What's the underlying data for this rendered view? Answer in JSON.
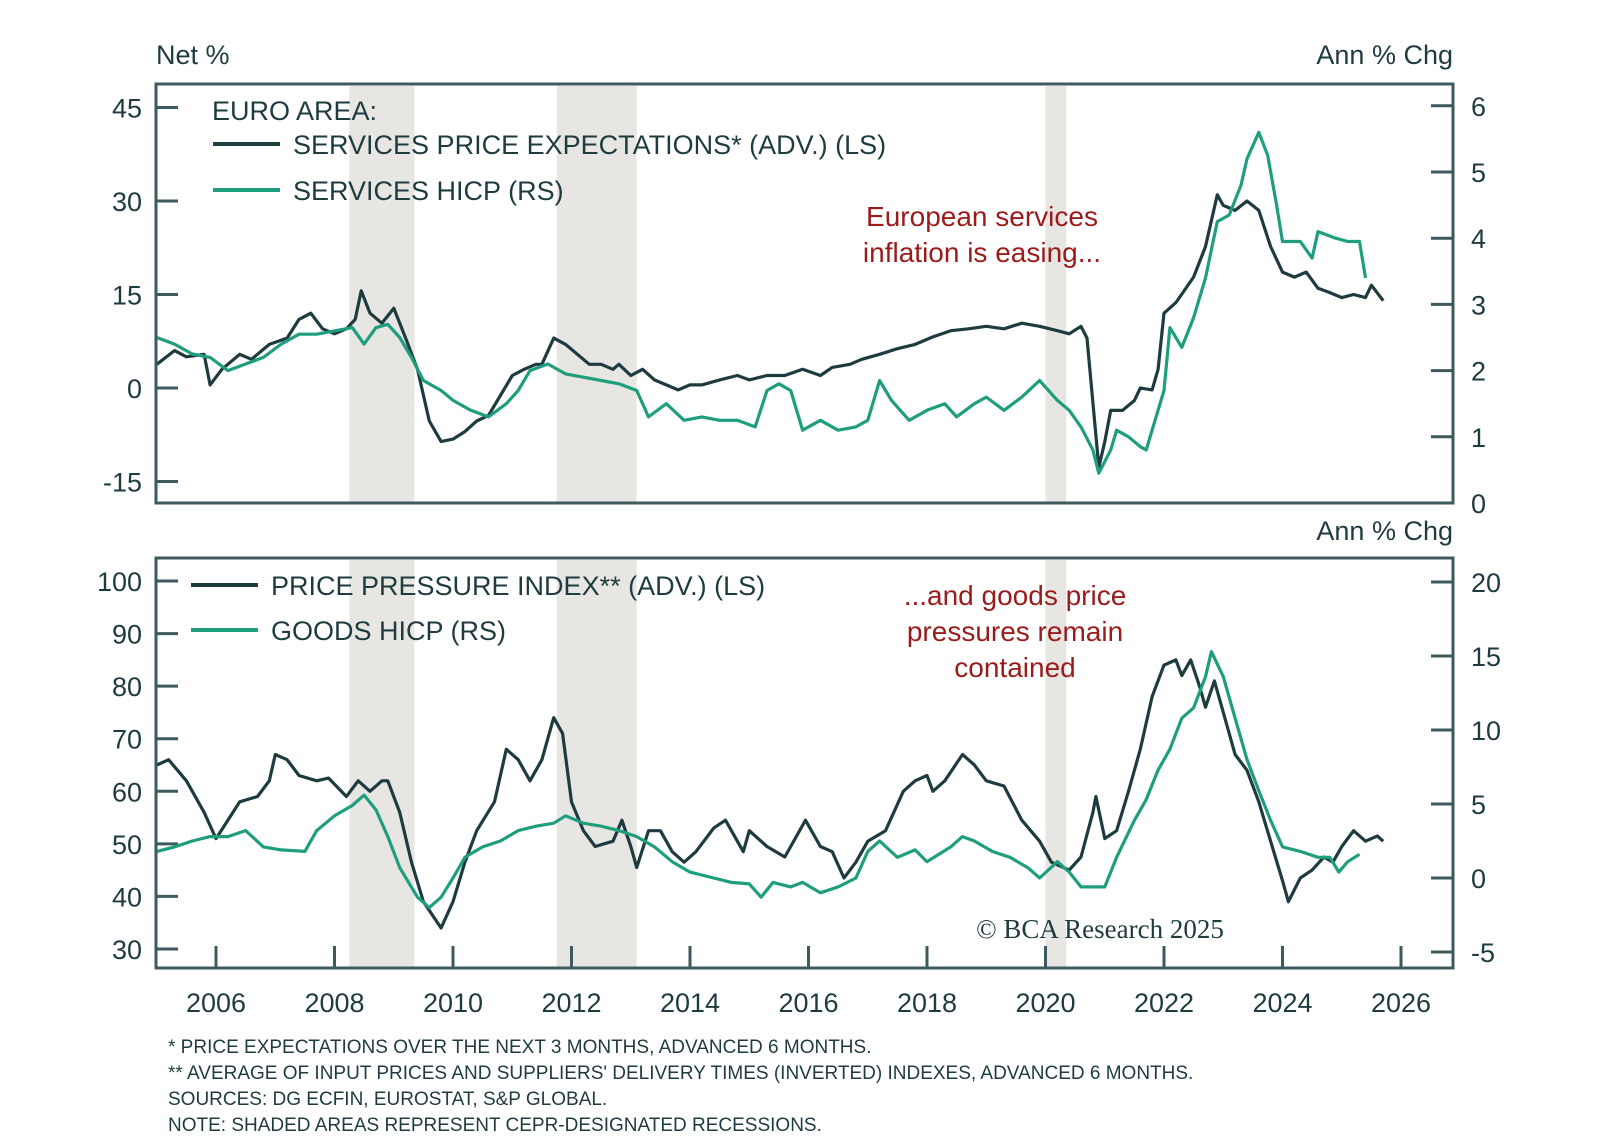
{
  "colors": {
    "dark": "#1e3b3f",
    "green": "#1f9e7e",
    "annotation": "#9b1b1b",
    "recession": "#e8e6e3",
    "axis": "#3d5a5e"
  },
  "chart_data": [
    {
      "type": "line",
      "title": "EURO AREA:",
      "ylabel_left": "Net %",
      "ylabel_right": "Ann % Chg",
      "xlim": [
        2005,
        2026.5
      ],
      "ylim_left": [
        -17,
        48
      ],
      "ylim_right": [
        0,
        6.3
      ],
      "yticks_left": [
        "45",
        "30",
        "15",
        "0",
        "-15"
      ],
      "yticks_left_values": [
        45,
        30,
        15,
        0,
        -15
      ],
      "yticks_right": [
        "6",
        "5",
        "4",
        "3",
        "2",
        "1",
        "0"
      ],
      "yticks_right_values": [
        6,
        5,
        4,
        3,
        2,
        1,
        0
      ],
      "annotation": [
        "European services",
        "inflation is easing..."
      ],
      "series": [
        {
          "name": "SERVICES PRICE EXPECTATIONS* (ADV.) (LS)",
          "axis": "left",
          "color": "dark",
          "x": [
            2005.0,
            2005.3,
            2005.5,
            2005.8,
            2005.9,
            2006.1,
            2006.4,
            2006.6,
            2006.9,
            2007.2,
            2007.4,
            2007.6,
            2007.8,
            2008.0,
            2008.2,
            2008.35,
            2008.45,
            2008.6,
            2008.8,
            2009.0,
            2009.2,
            2009.4,
            2009.6,
            2009.8,
            2010.0,
            2010.2,
            2010.4,
            2010.6,
            2010.8,
            2011.0,
            2011.2,
            2011.4,
            2011.5,
            2011.7,
            2011.9,
            2012.1,
            2012.3,
            2012.5,
            2012.7,
            2012.8,
            2013.0,
            2013.2,
            2013.4,
            2013.6,
            2013.8,
            2014.0,
            2014.2,
            2014.5,
            2014.8,
            2015.0,
            2015.3,
            2015.6,
            2015.9,
            2016.2,
            2016.4,
            2016.7,
            2016.9,
            2017.2,
            2017.5,
            2017.8,
            2018.1,
            2018.4,
            2018.7,
            2019.0,
            2019.3,
            2019.6,
            2019.9,
            2020.2,
            2020.4,
            2020.6,
            2020.7,
            2020.9,
            2021.0,
            2021.1,
            2021.3,
            2021.5,
            2021.6,
            2021.8,
            2021.9,
            2022.0,
            2022.2,
            2022.5,
            2022.7,
            2022.9,
            2023.0,
            2023.2,
            2023.4,
            2023.6,
            2023.8,
            2024.0,
            2024.2,
            2024.4,
            2024.6,
            2024.8,
            2025.0,
            2025.2,
            2025.4,
            2025.5,
            2025.7
          ],
          "y": [
            3.8,
            6,
            5,
            5.4,
            0.5,
            3,
            5.4,
            4.6,
            7,
            8,
            11,
            12,
            9.5,
            8.7,
            9.5,
            11,
            15.6,
            12,
            10.4,
            12.8,
            8,
            3,
            -5.3,
            -8.6,
            -8.2,
            -7,
            -5.3,
            -4.4,
            -1.2,
            2,
            3,
            3.8,
            3.8,
            8,
            7,
            5.4,
            3.8,
            3.8,
            3,
            3.8,
            2,
            3,
            1.3,
            0.5,
            -0.3,
            0.5,
            0.5,
            1.3,
            2,
            1.3,
            2,
            2,
            3,
            2,
            3.3,
            3.8,
            4.6,
            5.4,
            6.3,
            7,
            8.2,
            9.2,
            9.5,
            9.9,
            9.5,
            10.4,
            9.9,
            9.2,
            8.7,
            9.9,
            8,
            -12.7,
            -8.6,
            -3.6,
            -3.6,
            -2,
            0,
            -0.3,
            3,
            12,
            13.7,
            17.8,
            22.7,
            31,
            29.3,
            28.5,
            30,
            28.5,
            22.7,
            18.6,
            17.8,
            18.6,
            16,
            15.3,
            14.5,
            15,
            14.5,
            16.5,
            14
          ]
        },
        {
          "name": "SERVICES HICP (RS)",
          "axis": "right",
          "color": "green",
          "x": [
            2005.0,
            2005.3,
            2005.6,
            2005.9,
            2006.2,
            2006.5,
            2006.8,
            2007.1,
            2007.4,
            2007.7,
            2008.0,
            2008.3,
            2008.5,
            2008.7,
            2008.9,
            2009.1,
            2009.3,
            2009.5,
            2009.8,
            2010.0,
            2010.3,
            2010.6,
            2010.9,
            2011.1,
            2011.3,
            2011.6,
            2011.9,
            2012.2,
            2012.5,
            2012.8,
            2013.1,
            2013.3,
            2013.6,
            2013.9,
            2014.2,
            2014.5,
            2014.8,
            2015.1,
            2015.3,
            2015.5,
            2015.7,
            2015.9,
            2016.2,
            2016.5,
            2016.8,
            2017.0,
            2017.2,
            2017.4,
            2017.7,
            2018.0,
            2018.3,
            2018.5,
            2018.8,
            2019.0,
            2019.3,
            2019.6,
            2019.9,
            2020.2,
            2020.4,
            2020.6,
            2020.8,
            2020.9,
            2021.1,
            2021.2,
            2021.4,
            2021.6,
            2021.7,
            2021.8,
            2022.0,
            2022.1,
            2022.3,
            2022.5,
            2022.7,
            2022.9,
            2023.1,
            2023.3,
            2023.4,
            2023.6,
            2023.75,
            2023.9,
            2024.0,
            2024.3,
            2024.5,
            2024.6,
            2024.9,
            2025.1,
            2025.3,
            2025.4
          ],
          "y": [
            2.5,
            2.4,
            2.25,
            2.2,
            2.0,
            2.1,
            2.2,
            2.4,
            2.55,
            2.55,
            2.6,
            2.65,
            2.4,
            2.65,
            2.7,
            2.5,
            2.2,
            1.85,
            1.7,
            1.55,
            1.4,
            1.3,
            1.5,
            1.7,
            2.0,
            2.1,
            1.95,
            1.9,
            1.85,
            1.8,
            1.7,
            1.3,
            1.5,
            1.25,
            1.3,
            1.25,
            1.25,
            1.15,
            1.7,
            1.8,
            1.7,
            1.1,
            1.25,
            1.1,
            1.15,
            1.25,
            1.85,
            1.55,
            1.25,
            1.4,
            1.5,
            1.3,
            1.5,
            1.6,
            1.4,
            1.6,
            1.85,
            1.55,
            1.4,
            1.15,
            0.8,
            0.45,
            0.8,
            1.1,
            1.0,
            0.85,
            0.8,
            1.1,
            1.7,
            2.65,
            2.35,
            2.8,
            3.4,
            4.25,
            4.35,
            4.8,
            5.2,
            5.6,
            5.25,
            4.5,
            3.95,
            3.95,
            3.7,
            4.1,
            4.0,
            3.95,
            3.95,
            3.4
          ]
        }
      ],
      "recessions": [
        [
          2008.25,
          2009.35
        ],
        [
          2011.75,
          2013.1
        ],
        [
          2020.0,
          2020.35
        ]
      ]
    },
    {
      "type": "line",
      "ylabel_right": "Ann % Chg",
      "xlim": [
        2005,
        2026.5
      ],
      "ylim_left": [
        26,
        103
      ],
      "ylim_right": [
        -6,
        21
      ],
      "yticks_left": [
        "100",
        "90",
        "80",
        "70",
        "60",
        "50",
        "40",
        "30"
      ],
      "yticks_left_values": [
        100,
        90,
        80,
        70,
        60,
        50,
        40,
        30
      ],
      "yticks_right": [
        "20",
        "15",
        "10",
        "5",
        "0",
        "-5"
      ],
      "yticks_right_values": [
        20,
        15,
        10,
        5,
        0,
        -5
      ],
      "xticks": [
        "2006",
        "2008",
        "2010",
        "2012",
        "2014",
        "2016",
        "2018",
        "2020",
        "2022",
        "2024",
        "2026"
      ],
      "xtick_values": [
        2006,
        2008,
        2010,
        2012,
        2014,
        2016,
        2018,
        2020,
        2022,
        2024,
        2026
      ],
      "annotation": [
        "...and goods price",
        "pressures remain",
        "contained"
      ],
      "series": [
        {
          "name": "PRICE PRESSURE INDEX** (ADV.) (LS)",
          "axis": "left",
          "color": "dark",
          "x": [
            2005.0,
            2005.2,
            2005.5,
            2005.8,
            2006.0,
            2006.2,
            2006.4,
            2006.7,
            2006.9,
            2007.0,
            2007.2,
            2007.4,
            2007.7,
            2007.9,
            2008.2,
            2008.4,
            2008.6,
            2008.8,
            2008.9,
            2009.1,
            2009.3,
            2009.5,
            2009.8,
            2010.0,
            2010.2,
            2010.4,
            2010.7,
            2010.9,
            2011.1,
            2011.3,
            2011.5,
            2011.7,
            2011.85,
            2012.0,
            2012.2,
            2012.4,
            2012.7,
            2012.85,
            2013.0,
            2013.1,
            2013.3,
            2013.5,
            2013.7,
            2013.9,
            2014.1,
            2014.4,
            2014.6,
            2014.9,
            2015.0,
            2015.3,
            2015.6,
            2015.8,
            2015.95,
            2016.2,
            2016.4,
            2016.6,
            2016.8,
            2017.0,
            2017.3,
            2017.6,
            2017.8,
            2018.0,
            2018.1,
            2018.3,
            2018.6,
            2018.8,
            2019.0,
            2019.3,
            2019.6,
            2019.9,
            2020.1,
            2020.4,
            2020.6,
            2020.8,
            2020.85,
            2021.0,
            2021.2,
            2021.4,
            2021.6,
            2021.8,
            2022.0,
            2022.2,
            2022.3,
            2022.45,
            2022.6,
            2022.7,
            2022.85,
            2023.0,
            2023.2,
            2023.4,
            2023.6,
            2023.8,
            2024.0,
            2024.1,
            2024.3,
            2024.5,
            2024.7,
            2024.85,
            2025.0,
            2025.2,
            2025.4,
            2025.6,
            2025.7
          ],
          "y": [
            65,
            66,
            62,
            56,
            51,
            54.5,
            58,
            59,
            62,
            67,
            66,
            63,
            62,
            62.5,
            59,
            62,
            60,
            62,
            62,
            56,
            46.5,
            39,
            34,
            39,
            46.5,
            52.5,
            58,
            68,
            66,
            62,
            66,
            74,
            71,
            58,
            52.5,
            49.5,
            50.5,
            54.5,
            49.5,
            45.5,
            52.5,
            52.5,
            48.5,
            46.5,
            48.5,
            53,
            54.5,
            48.5,
            52.5,
            49.5,
            47.5,
            51.5,
            54.5,
            49.5,
            48.5,
            43.5,
            46.5,
            50.5,
            52.5,
            60,
            62,
            63,
            60,
            62,
            67,
            65,
            62,
            61,
            54.5,
            50.5,
            46.5,
            45,
            47.5,
            56,
            59,
            51,
            52.5,
            60,
            68,
            78,
            84,
            85,
            82,
            85,
            80,
            76,
            81,
            75,
            67,
            64,
            58,
            50.5,
            43,
            39,
            43.5,
            45,
            47.5,
            46.5,
            49.5,
            52.5,
            50.5,
            51.5,
            50.5
          ]
        },
        {
          "name": "GOODS HICP (RS)",
          "axis": "right",
          "color": "green",
          "x": [
            2005.0,
            2005.3,
            2005.6,
            2005.9,
            2006.2,
            2006.5,
            2006.8,
            2007.1,
            2007.5,
            2007.7,
            2008.0,
            2008.3,
            2008.5,
            2008.7,
            2008.9,
            2009.1,
            2009.4,
            2009.6,
            2009.8,
            2010.0,
            2010.2,
            2010.5,
            2010.8,
            2011.1,
            2011.4,
            2011.7,
            2011.9,
            2012.2,
            2012.5,
            2012.8,
            2013.1,
            2013.4,
            2013.7,
            2014.0,
            2014.4,
            2014.7,
            2015.0,
            2015.2,
            2015.4,
            2015.7,
            2015.9,
            2016.2,
            2016.5,
            2016.8,
            2017.0,
            2017.2,
            2017.5,
            2017.8,
            2018.0,
            2018.4,
            2018.6,
            2018.8,
            2019.1,
            2019.4,
            2019.7,
            2019.9,
            2020.2,
            2020.4,
            2020.6,
            2020.9,
            2021.0,
            2021.2,
            2021.5,
            2021.7,
            2021.9,
            2022.1,
            2022.3,
            2022.5,
            2022.7,
            2022.8,
            2023.0,
            2023.2,
            2023.4,
            2023.6,
            2023.8,
            2024.0,
            2024.3,
            2024.6,
            2024.8,
            2024.95,
            2025.1,
            2025.3
          ],
          "y": [
            1.8,
            2.1,
            2.5,
            2.8,
            2.8,
            3.2,
            2.1,
            1.9,
            1.8,
            3.2,
            4.2,
            4.9,
            5.6,
            4.6,
            2.8,
            0.7,
            -1.3,
            -2.0,
            -1.3,
            0,
            1.4,
            2.1,
            2.5,
            3.2,
            3.5,
            3.7,
            4.2,
            3.7,
            3.5,
            3.2,
            2.8,
            2.1,
            1.1,
            0.4,
            0,
            -0.3,
            -0.4,
            -1.3,
            -0.3,
            -0.6,
            -0.3,
            -1.0,
            -0.6,
            0,
            1.8,
            2.5,
            1.4,
            1.9,
            1.1,
            2.1,
            2.8,
            2.5,
            1.8,
            1.4,
            0.7,
            0,
            1.1,
            0.4,
            -0.6,
            -0.6,
            -0.6,
            1.4,
            3.9,
            5.3,
            7.3,
            8.7,
            10.8,
            11.5,
            13.6,
            15.3,
            13.6,
            10.8,
            8.0,
            5.9,
            3.9,
            2.1,
            1.8,
            1.4,
            1.4,
            0.4,
            1.1,
            1.6
          ]
        }
      ],
      "recessions": [
        [
          2008.25,
          2009.35
        ],
        [
          2011.75,
          2013.1
        ],
        [
          2020.0,
          2020.35
        ]
      ]
    }
  ],
  "legend": {
    "top_header": "EURO AREA:",
    "top": [
      "SERVICES PRICE EXPECTATIONS* (ADV.) (LS)",
      "SERVICES HICP (RS)"
    ],
    "bottom": [
      "PRICE PRESSURE INDEX** (ADV.) (LS)",
      "GOODS HICP (RS)"
    ]
  },
  "copyright": "© BCA Research 2025",
  "footnotes": [
    "* PRICE EXPECTATIONS OVER THE NEXT 3 MONTHS, ADVANCED 6 MONTHS.",
    "** AVERAGE OF INPUT PRICES AND SUPPLIERS' DELIVERY TIMES (INVERTED) INDEXES, ADVANCED 6 MONTHS.",
    "SOURCES: DG ECFIN, EUROSTAT, S&P GLOBAL.",
    "NOTE: SHADED AREAS REPRESENT CEPR-DESIGNATED RECESSIONS."
  ]
}
